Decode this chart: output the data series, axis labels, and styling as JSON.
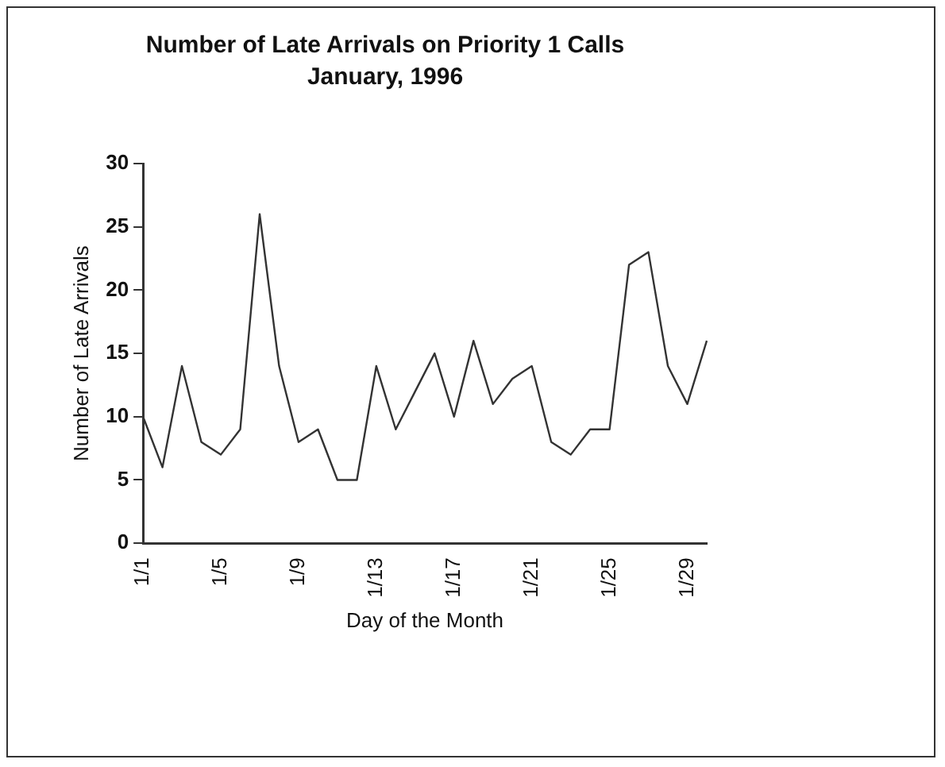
{
  "chart_data": {
    "type": "line",
    "title": "Number of Late Arrivals on Priority 1 Calls",
    "subtitle": "January, 1996",
    "xlabel": "Day of the Month",
    "ylabel": "Number of Late Arrivals",
    "categories": [
      "1/1",
      null,
      null,
      null,
      "1/5",
      null,
      null,
      null,
      "1/9",
      null,
      null,
      null,
      "1/13",
      null,
      null,
      null,
      "1/17",
      null,
      null,
      null,
      "1/21",
      null,
      null,
      null,
      "1/25",
      null,
      null,
      null,
      "1/29",
      null
    ],
    "series": [
      {
        "color": "#333333",
        "values": [
          10,
          6,
          14,
          8,
          7,
          9,
          26,
          14,
          8,
          9,
          5,
          5,
          14,
          9,
          12,
          15,
          10,
          16,
          11,
          13,
          14,
          8,
          7,
          9,
          9,
          22,
          23,
          14,
          11,
          16
        ]
      }
    ],
    "ylim": [
      0,
      30
    ],
    "yticks": [
      0,
      5,
      10,
      15,
      20,
      25,
      30
    ],
    "grid": false,
    "legend": false,
    "marker": "none",
    "line_style": "solid"
  }
}
